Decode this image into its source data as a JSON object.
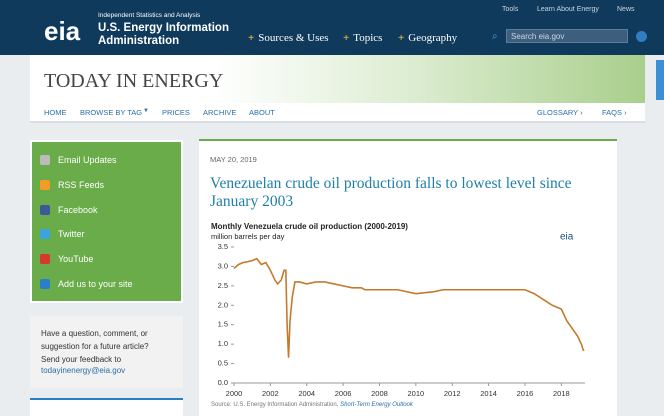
{
  "header": {
    "logo": "eia",
    "tagline": "Independent Statistics and Analysis",
    "org_line1": "U.S. Energy Information",
    "org_line2": "Administration",
    "top_links": [
      "Tools",
      "Learn About Energy",
      "News"
    ],
    "nav": [
      "Sources & Uses",
      "Topics",
      "Geography"
    ],
    "search_placeholder": "Search eia.gov"
  },
  "banner": {
    "title": "TODAY IN ENERGY"
  },
  "subnav": {
    "left": [
      "HOME",
      "BROWSE BY TAG",
      "PRICES",
      "ARCHIVE",
      "ABOUT"
    ],
    "right": [
      "GLOSSARY ›",
      "FAQS ›"
    ]
  },
  "sidebar": {
    "links": [
      "Email Updates",
      "RSS Feeds",
      "Facebook",
      "Twitter",
      "YouTube",
      "Add us to your site"
    ],
    "feedback": {
      "text": "Have a question, comment, or suggestion for a future article? Send your feedback to",
      "email": "todayinenergy@eia.gov"
    }
  },
  "article": {
    "date": "MAY 20, 2019",
    "title": "Venezuelan crude oil production falls to lowest level since January 2003"
  },
  "chart_data": {
    "type": "line",
    "title": "Monthly Venezuela crude oil production (2000-2019)",
    "subtitle": "million barrels per day",
    "logo": "eia",
    "source": "Source: U.S. Energy Information Administration,",
    "source_link": "Short-Term Energy Outlook",
    "color": "#c47a2c",
    "x": [
      2000,
      2000.25,
      2000.5,
      2000.75,
      2001,
      2001.25,
      2001.5,
      2001.75,
      2002,
      2002.25,
      2002.4,
      2002.6,
      2002.75,
      2002.85,
      2002.92,
      2003,
      2003.08,
      2003.2,
      2003.35,
      2003.6,
      2004,
      2004.5,
      2005,
      2005.5,
      2006,
      2006.5,
      2007,
      2007.2,
      2008,
      2009,
      2010,
      2011,
      2011.5,
      2013,
      2014,
      2015,
      2016,
      2016.5,
      2017,
      2017.5,
      2018,
      2018.3,
      2018.6,
      2018.9,
      2019.1,
      2019.2,
      2019.25
    ],
    "values": [
      2.95,
      3.05,
      3.1,
      3.12,
      3.15,
      3.2,
      3.05,
      3.1,
      2.9,
      2.65,
      2.55,
      2.65,
      2.9,
      2.9,
      1.5,
      0.65,
      1.6,
      2.2,
      2.6,
      2.6,
      2.55,
      2.6,
      2.6,
      2.55,
      2.5,
      2.45,
      2.45,
      2.4,
      2.4,
      2.4,
      2.3,
      2.35,
      2.4,
      2.4,
      2.4,
      2.4,
      2.4,
      2.3,
      2.15,
      2.0,
      1.9,
      1.6,
      1.4,
      1.2,
      1.0,
      0.85,
      0.83
    ],
    "xlim": [
      2000,
      2019.3
    ],
    "xticks": [
      2000,
      2002,
      2004,
      2006,
      2008,
      2010,
      2012,
      2014,
      2016,
      2018
    ],
    "ylim": [
      0,
      3.5
    ],
    "yticks": [
      {
        "value": 0,
        "label": "0.0"
      },
      0.5,
      {
        "value": 1,
        "label": "1.0"
      },
      1.5,
      {
        "value": 2,
        "label": "2.0"
      },
      2.5,
      {
        "value": 3,
        "label": "3.0"
      },
      3.5
    ]
  }
}
